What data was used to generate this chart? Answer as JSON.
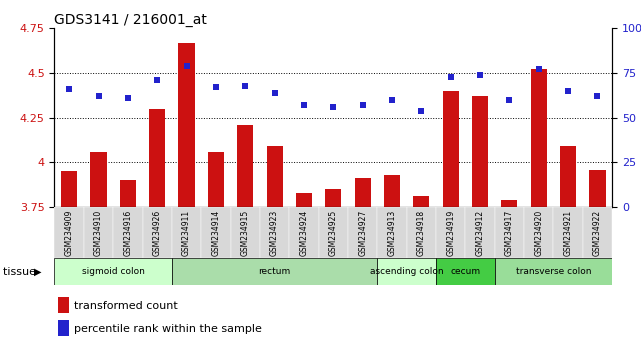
{
  "title": "GDS3141 / 216001_at",
  "samples": [
    "GSM234909",
    "GSM234910",
    "GSM234916",
    "GSM234926",
    "GSM234911",
    "GSM234914",
    "GSM234915",
    "GSM234923",
    "GSM234924",
    "GSM234925",
    "GSM234927",
    "GSM234913",
    "GSM234918",
    "GSM234919",
    "GSM234912",
    "GSM234917",
    "GSM234920",
    "GSM234921",
    "GSM234922"
  ],
  "bar_values": [
    3.95,
    4.06,
    3.9,
    4.3,
    4.67,
    4.06,
    4.21,
    4.09,
    3.83,
    3.85,
    3.91,
    3.93,
    3.81,
    4.4,
    4.37,
    3.79,
    4.52,
    4.09,
    3.96
  ],
  "dot_values": [
    66,
    62,
    61,
    71,
    79,
    67,
    68,
    64,
    57,
    56,
    57,
    60,
    54,
    73,
    74,
    60,
    77,
    65,
    62
  ],
  "ylim_left": [
    3.75,
    4.75
  ],
  "ylim_right": [
    0,
    100
  ],
  "yticks_left": [
    3.75,
    4.0,
    4.25,
    4.5,
    4.75
  ],
  "ytick_labels_left": [
    "3.75",
    "4",
    "4.25",
    "4.5",
    "4.75"
  ],
  "ytick_labels_right": [
    "0",
    "25",
    "50",
    "75",
    "100%"
  ],
  "bar_color": "#cc1111",
  "dot_color": "#2222cc",
  "groups": [
    {
      "label": "sigmoid colon",
      "start": 0,
      "end": 4,
      "color": "#ccffcc"
    },
    {
      "label": "rectum",
      "start": 4,
      "end": 11,
      "color": "#aaddaa"
    },
    {
      "label": "ascending colon",
      "start": 11,
      "end": 13,
      "color": "#ccffcc"
    },
    {
      "label": "cecum",
      "start": 13,
      "end": 15,
      "color": "#44cc44"
    },
    {
      "label": "transverse colon",
      "start": 15,
      "end": 19,
      "color": "#99dd99"
    }
  ],
  "tissue_label": "tissue",
  "legend1_label": "transformed count",
  "legend2_label": "percentile rank within the sample",
  "bg_color": "#ffffff"
}
